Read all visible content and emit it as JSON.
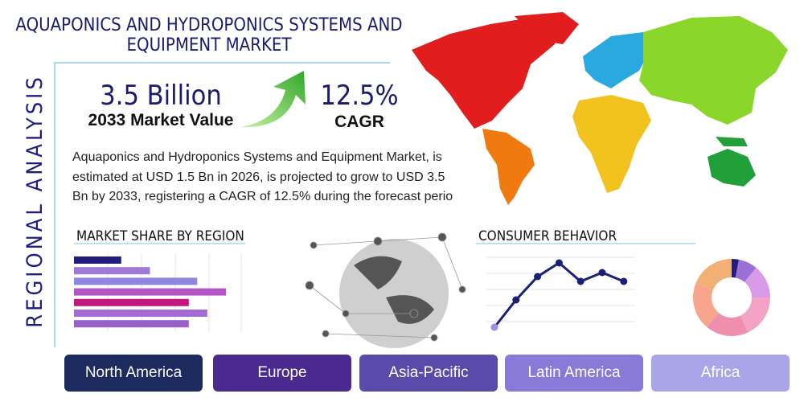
{
  "header": {
    "title": [
      "AQUAPONICS AND HYDROPONICS SYSTEMS AND",
      "EQUIPMENT MARKET"
    ]
  },
  "side_label": "REGIONAL ANALYSIS",
  "stats": [
    {
      "value": "3.5 Billion",
      "label": "2033 Market Value"
    },
    {
      "value": "12.5%",
      "label": "CAGR"
    }
  ],
  "description": "Aquaponics and Hydroponics Systems and Equipment Market, is estimated at USD 1.5 Bn in 2026, is projected to grow to USD 3.5 Bn by 2033, registering a CAGR of 12.5% during the forecast perio",
  "market_share": {
    "title": "MARKET SHARE BY REGION",
    "values": [
      28,
      45,
      73,
      90,
      68,
      79,
      68
    ],
    "colors": [
      "#221c7c",
      "#a07ad6",
      "#8f86e2",
      "#b455c6",
      "#c4177c",
      "#a46bd6",
      "#9a5ec9"
    ]
  },
  "consumer_behavior": {
    "title": "CONSUMER BEHAVIOR",
    "values": [
      8,
      42,
      71,
      88,
      65,
      76,
      65
    ],
    "color": "#1a1f7a"
  },
  "donut": {
    "values": [
      3,
      8,
      14,
      18,
      18,
      20,
      19
    ],
    "colors": [
      "#221c7c",
      "#9a6fd6",
      "#d79be8",
      "#f2a3c6",
      "#ee8fae",
      "#f7a58c",
      "#f3b074"
    ]
  },
  "regions": [
    "North America",
    "Europe",
    "Asia-Pacific",
    "Latin America",
    "Africa"
  ]
}
